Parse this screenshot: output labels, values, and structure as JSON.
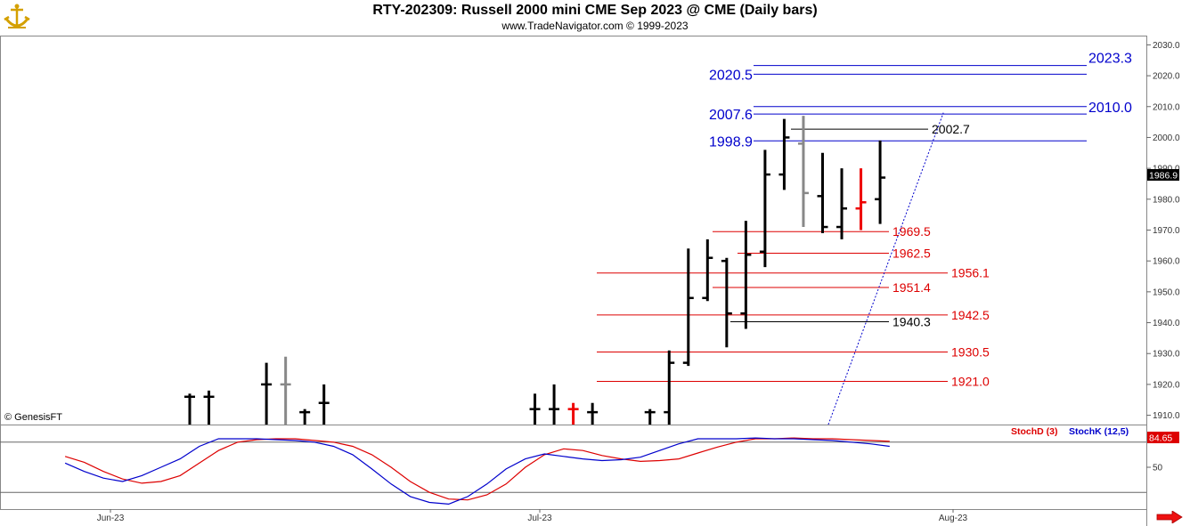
{
  "header": {
    "title": "RTY-202309:  Russell 2000 mini CME Sep 2023 @ CME  (Daily bars)",
    "subtitle": "www.TradeNavigator.com © 1999-2023"
  },
  "watermark": "© GenesisFT",
  "colors": {
    "support": "#dd0000",
    "resistance": "#0000cc",
    "bars_up": "#000000",
    "bars_gray": "#888888",
    "bars_red": "#ee0000",
    "stoch_d": "#dd0000",
    "stoch_k": "#0000cc"
  },
  "chart_data": {
    "type": "ohlc",
    "ylim": [
      1907,
      2033
    ],
    "y_ticks": [
      1910,
      1920,
      1930,
      1940,
      1950,
      1960,
      1970,
      1980,
      1990,
      2000,
      2010,
      2020,
      2030
    ],
    "x_labels": [
      "Jun-23",
      "Jul-23",
      "Aug-23"
    ],
    "last_price_label": "1986.9",
    "bars": [
      {
        "i": 0,
        "h": 1917,
        "l": 1907,
        "o": 1916,
        "c": 1916,
        "color": "#000000"
      },
      {
        "i": 1,
        "h": 1918,
        "l": 1907,
        "o": 1916,
        "c": 1916,
        "color": "#000000"
      },
      {
        "i": 4,
        "h": 1927,
        "l": 1907,
        "o": 1920,
        "c": 1920,
        "color": "#000000"
      },
      {
        "i": 5,
        "h": 1929,
        "l": 1907,
        "o": 1920,
        "c": 1920,
        "color": "#888888"
      },
      {
        "i": 6,
        "h": 1912,
        "l": 1907,
        "o": 1911,
        "c": 1911,
        "color": "#000000"
      },
      {
        "i": 7,
        "h": 1920,
        "l": 1907,
        "o": 1914,
        "c": 1914,
        "color": "#000000"
      },
      {
        "i": 18,
        "h": 1917,
        "l": 1907,
        "o": 1912,
        "c": 1912,
        "color": "#000000"
      },
      {
        "i": 19,
        "h": 1920,
        "l": 1907,
        "o": 1912,
        "c": 1912,
        "color": "#000000"
      },
      {
        "i": 20,
        "h": 1914,
        "l": 1907,
        "o": 1912,
        "c": 1912,
        "color": "#ee0000"
      },
      {
        "i": 21,
        "h": 1914,
        "l": 1907,
        "o": 1911,
        "c": 1911,
        "color": "#000000"
      },
      {
        "i": 24,
        "h": 1912,
        "l": 1907,
        "o": 1911,
        "c": 1911,
        "color": "#000000"
      },
      {
        "i": 25,
        "h": 1931,
        "l": 1907,
        "o": 1911,
        "c": 1927,
        "color": "#000000"
      },
      {
        "i": 26,
        "h": 1964,
        "l": 1926,
        "o": 1927,
        "c": 1948,
        "color": "#000000"
      },
      {
        "i": 27,
        "h": 1967,
        "l": 1947,
        "o": 1948,
        "c": 1961,
        "color": "#000000"
      },
      {
        "i": 28,
        "h": 1961,
        "l": 1932,
        "o": 1960,
        "c": 1943,
        "color": "#000000"
      },
      {
        "i": 29,
        "h": 1973,
        "l": 1938,
        "o": 1943,
        "c": 1962,
        "color": "#000000"
      },
      {
        "i": 30,
        "h": 1996,
        "l": 1958,
        "o": 1963,
        "c": 1988,
        "color": "#000000"
      },
      {
        "i": 31,
        "h": 2006,
        "l": 1983,
        "o": 1988,
        "c": 2000,
        "color": "#000000"
      },
      {
        "i": 32,
        "h": 2007,
        "l": 1971,
        "o": 1998,
        "c": 1982,
        "color": "#888888"
      },
      {
        "i": 33,
        "h": 1995,
        "l": 1969,
        "o": 1981,
        "c": 1971,
        "color": "#000000"
      },
      {
        "i": 34,
        "h": 1990,
        "l": 1967,
        "o": 1971,
        "c": 1977,
        "color": "#000000"
      },
      {
        "i": 35,
        "h": 1990,
        "l": 1970,
        "o": 1977,
        "c": 1979,
        "color": "#ee0000"
      },
      {
        "i": 36,
        "h": 1999,
        "l": 1972,
        "o": 1980,
        "c": 1987,
        "color": "#000000"
      }
    ],
    "levels": [
      {
        "value": 2023.3,
        "label": "2023.3",
        "color": "#0000cc",
        "kind": "resistance",
        "label_side": "right"
      },
      {
        "value": 2020.5,
        "label": "2020.5",
        "color": "#0000cc",
        "kind": "resistance",
        "label_side": "left"
      },
      {
        "value": 2010.0,
        "label": "2010.0",
        "color": "#0000cc",
        "kind": "resistance",
        "label_side": "right"
      },
      {
        "value": 2007.6,
        "label": "2007.6",
        "color": "#0000cc",
        "kind": "resistance",
        "label_side": "left"
      },
      {
        "value": 2002.7,
        "label": "2002.7",
        "color": "#000000",
        "kind": "marker",
        "label_side": "right"
      },
      {
        "value": 1998.9,
        "label": "1998.9",
        "color": "#0000cc",
        "kind": "resistance",
        "label_side": "left"
      },
      {
        "value": 1969.5,
        "label": "1969.5",
        "color": "#dd0000",
        "kind": "support",
        "label_side": "right"
      },
      {
        "value": 1962.5,
        "label": "1962.5",
        "color": "#dd0000",
        "kind": "support",
        "label_side": "right"
      },
      {
        "value": 1956.1,
        "label": "1956.1",
        "color": "#dd0000",
        "kind": "support",
        "label_side": "right"
      },
      {
        "value": 1951.4,
        "label": "1951.4",
        "color": "#dd0000",
        "kind": "support",
        "label_side": "right"
      },
      {
        "value": 1942.5,
        "label": "1942.5",
        "color": "#dd0000",
        "kind": "support",
        "label_side": "right"
      },
      {
        "value": 1940.3,
        "label": "1940.3",
        "color": "#000000",
        "kind": "marker",
        "label_side": "right"
      },
      {
        "value": 1930.5,
        "label": "1930.5",
        "color": "#dd0000",
        "kind": "support",
        "label_side": "right"
      },
      {
        "value": 1921.0,
        "label": "1921.0",
        "color": "#dd0000",
        "kind": "support",
        "label_side": "right"
      }
    ],
    "trendline": {
      "from": [
        33.3,
        1907
      ],
      "to": [
        39.3,
        2008
      ],
      "color": "#0000cc",
      "style": "dotted"
    },
    "stochastic": {
      "ylim": [
        0,
        100
      ],
      "y_ticks": [
        50
      ],
      "reference_lines": [
        80,
        20
      ],
      "d_label": "StochD (3)",
      "k_label": "StochK (12,5)",
      "value_label": "84.65",
      "series": [
        {
          "name": "StochD (3)",
          "color": "#dd0000",
          "x": [
            -6.5,
            -5.5,
            -4.5,
            -3.5,
            -2.5,
            -1.5,
            -0.5,
            0.5,
            1.5,
            2.5,
            3.5,
            4.5,
            5.5,
            6.5,
            7.5,
            8.5,
            9.5,
            10.5,
            11.5,
            12.5,
            13.5,
            14.5,
            15.5,
            16.5,
            17.5,
            18.5,
            19.5,
            20.5,
            21.5,
            22.5,
            23.5,
            24.5,
            25.5,
            26.5,
            27.5,
            28.5,
            29.5,
            30.5,
            31.5,
            32.5,
            33.5,
            34.5,
            35.5,
            36.5
          ],
          "values": [
            63,
            56,
            45,
            36,
            31,
            33,
            40,
            55,
            70,
            80,
            83,
            84,
            84,
            82,
            80,
            75,
            65,
            50,
            33,
            20,
            12,
            11,
            17,
            30,
            50,
            65,
            72,
            70,
            64,
            60,
            57,
            58,
            60,
            67,
            74,
            80,
            84,
            84,
            85,
            84,
            84,
            83,
            82,
            81
          ]
        },
        {
          "name": "StochK (12,5)",
          "color": "#0000cc",
          "x": [
            -6.5,
            -5.5,
            -4.5,
            -3.5,
            -2.5,
            -1.5,
            -0.5,
            0.5,
            1.5,
            2.5,
            3.5,
            4.5,
            5.5,
            6.5,
            7.5,
            8.5,
            9.5,
            10.5,
            11.5,
            12.5,
            13.5,
            14.5,
            15.5,
            16.5,
            17.5,
            18.5,
            19.5,
            20.5,
            21.5,
            22.5,
            23.5,
            24.5,
            25.5,
            26.5,
            27.5,
            28.5,
            29.5,
            30.5,
            31.5,
            32.5,
            33.5,
            34.5,
            35.5,
            36.5
          ],
          "values": [
            55,
            45,
            37,
            33,
            40,
            50,
            60,
            75,
            84,
            84,
            84,
            83,
            82,
            80,
            75,
            65,
            48,
            30,
            15,
            8,
            6,
            15,
            30,
            48,
            60,
            66,
            63,
            60,
            58,
            59,
            62,
            70,
            78,
            84,
            84,
            84,
            85,
            84,
            84,
            83,
            82,
            80,
            78,
            75
          ]
        }
      ]
    }
  }
}
